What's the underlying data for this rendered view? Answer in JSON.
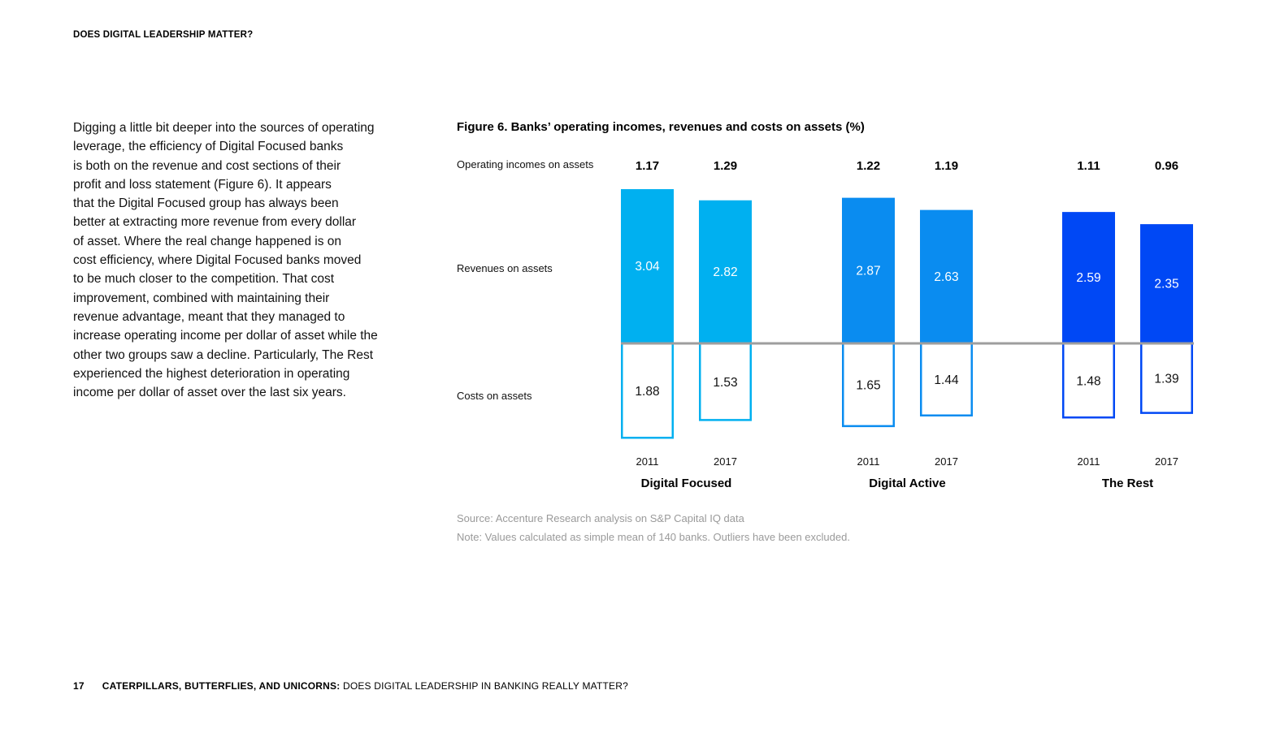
{
  "header": {
    "title": "DOES DIGITAL LEADERSHIP MATTER?"
  },
  "body": {
    "lines": [
      "Digging a little bit deeper into the sources of operating",
      "leverage, the efficiency of Digital Focused banks",
      "is both on the revenue and cost sections of their",
      "profit and loss statement (Figure 6). It appears",
      "that the Digital Focused group has always been",
      "better at extracting more revenue from every dollar",
      "of asset. Where the real change happened is on",
      "cost efficiency, where Digital Focused banks moved",
      "to be much closer to the competition. That cost",
      "improvement, combined with maintaining their",
      "revenue advantage, meant that they managed to",
      "increase operating income per dollar of asset while the",
      "other two groups saw a decline. Particularly, The Rest",
      "experienced the highest deterioration in operating",
      "income per dollar of asset over the last six years."
    ]
  },
  "chart_data": {
    "type": "bar",
    "title": "Figure 6. Banks’ operating incomes, revenues and costs on assets (%)",
    "row_labels": {
      "operating": "Operating incomes on assets",
      "revenues": "Revenues on assets",
      "costs": "Costs on assets"
    },
    "groups": [
      {
        "name": "Digital Focused",
        "color": "#00b0f0",
        "bars": [
          {
            "year": "2011",
            "operating": "1.17",
            "revenue": 3.04,
            "cost": 1.88
          },
          {
            "year": "2017",
            "operating": "1.29",
            "revenue": 2.82,
            "cost": 1.53
          }
        ]
      },
      {
        "name": "Digital Active",
        "color": "#0a8cf0",
        "bars": [
          {
            "year": "2011",
            "operating": "1.22",
            "revenue": 2.87,
            "cost": 1.65
          },
          {
            "year": "2017",
            "operating": "1.19",
            "revenue": 2.63,
            "cost": 1.44
          }
        ]
      },
      {
        "name": "The Rest",
        "color": "#0048f5",
        "bars": [
          {
            "year": "2011",
            "operating": "1.11",
            "revenue": 2.59,
            "cost": 1.48
          },
          {
            "year": "2017",
            "operating": "0.96",
            "revenue": 2.35,
            "cost": 1.39
          }
        ]
      }
    ],
    "baseline_color": "#9e9e9e"
  },
  "source": {
    "source_text": "Source: Accenture Research analysis on S&P Capital IQ data",
    "note_text": "Note: Values calculated as simple mean of 140 banks. Outliers have been excluded."
  },
  "footer": {
    "page_number": "17",
    "report_name": "CATERPILLARS, BUTTERFLIES, AND UNICORNS:",
    "report_sub": " DOES DIGITAL LEADERSHIP IN BANKING REALLY MATTER?"
  }
}
